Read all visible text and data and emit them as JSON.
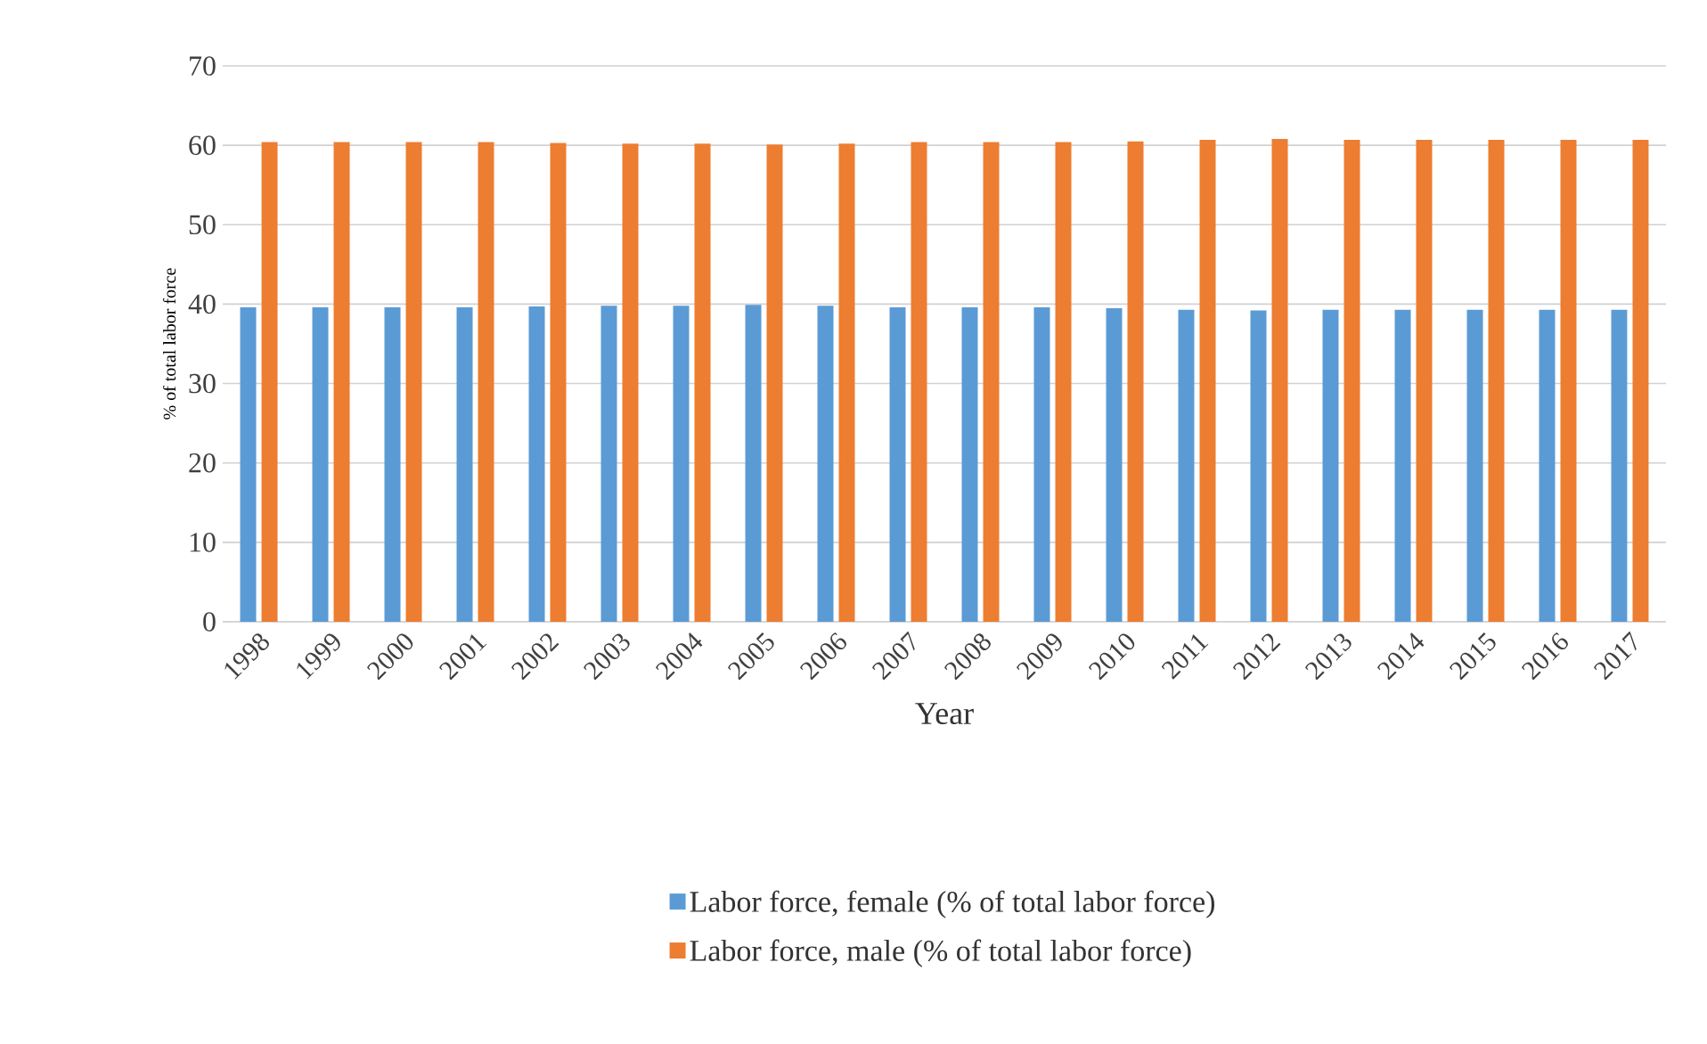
{
  "chart_data": {
    "type": "bar",
    "xlabel": "Year",
    "ylabel": "% of total labor force",
    "categories": [
      "1998",
      "1999",
      "2000",
      "2001",
      "2002",
      "2003",
      "2004",
      "2005",
      "2006",
      "2007",
      "2008",
      "2009",
      "2010",
      "2011",
      "2012",
      "2013",
      "2014",
      "2015",
      "2016",
      "2017"
    ],
    "series": [
      {
        "name": "Labor force, female (% of total labor force)",
        "color": "#5b9bd5",
        "values": [
          39.6,
          39.6,
          39.6,
          39.6,
          39.7,
          39.8,
          39.8,
          39.9,
          39.8,
          39.6,
          39.6,
          39.6,
          39.5,
          39.3,
          39.2,
          39.3,
          39.3,
          39.3,
          39.3,
          39.3
        ]
      },
      {
        "name": "Labor force, male (% of total labor force)",
        "color": "#ed7d31",
        "values": [
          60.4,
          60.4,
          60.4,
          60.4,
          60.3,
          60.2,
          60.2,
          60.1,
          60.2,
          60.4,
          60.4,
          60.4,
          60.5,
          60.7,
          60.8,
          60.7,
          60.7,
          60.7,
          60.7,
          60.7
        ]
      }
    ],
    "ylim": [
      0,
      70
    ],
    "yticks": [
      0,
      10,
      20,
      30,
      40,
      50,
      60,
      70
    ],
    "grid": "y",
    "legend": "bottom"
  }
}
